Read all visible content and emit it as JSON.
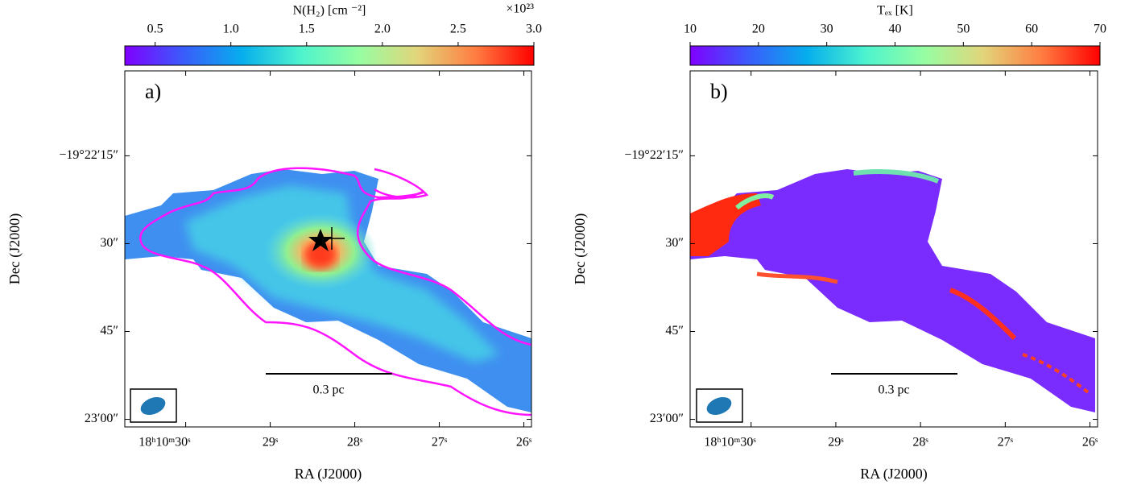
{
  "chart_data": [
    {
      "type": "image",
      "panel_label": "a)",
      "x_label": "RA (J2000)",
      "y_label": "Dec (J2000)",
      "xlim": [
        30.72,
        25.91
      ],
      "xticks": [
        {
          "value": 30,
          "label": "18ʰ10ᵐ30ˢ"
        },
        {
          "value": 29,
          "label": "29ˢ"
        },
        {
          "value": 28,
          "label": "28ˢ"
        },
        {
          "value": 27,
          "label": "27ˢ"
        },
        {
          "value": 26,
          "label": "26ˢ"
        }
      ],
      "ylim": [
        61.3,
        0.5
      ],
      "yticks": [
        {
          "value": 15,
          "label": "−19°22′15″"
        },
        {
          "value": 30,
          "label": "30″"
        },
        {
          "value": 45,
          "label": "45″"
        },
        {
          "value": 60,
          "label": "23′00″"
        }
      ],
      "scale_bar": "0.3 pc",
      "colorbar": {
        "label": "N(H₂) [cm ⁻²]",
        "offset_label": "×10²³",
        "colormap": "rainbow",
        "clim": [
          0.3,
          3.0
        ],
        "ticks": [
          0.5,
          {
            "value": 1,
            "label": "1.0"
          },
          1.5,
          {
            "value": 2,
            "label": "2.0"
          },
          2.5,
          {
            "value": 3,
            "label": "3.0"
          }
        ]
      }
    },
    {
      "type": "image",
      "panel_label": "b)",
      "x_label": "RA (J2000)",
      "y_label": "Dec (J2000)",
      "xlim": [
        30.72,
        25.91
      ],
      "xticks": [
        {
          "value": 30,
          "label": "18ʰ10ᵐ30ˢ"
        },
        {
          "value": 29,
          "label": "29ˢ"
        },
        {
          "value": 28,
          "label": "28ˢ"
        },
        {
          "value": 27,
          "label": "27ˢ"
        },
        {
          "value": 26,
          "label": "26ˢ"
        }
      ],
      "ylim": [
        61.3,
        0.5
      ],
      "yticks": [
        {
          "value": 15,
          "label": "−19°22′15″"
        },
        {
          "value": 30,
          "label": "30″"
        },
        {
          "value": 45,
          "label": "45″"
        },
        {
          "value": 60,
          "label": "23′00″"
        }
      ],
      "scale_bar": "0.3 pc",
      "colorbar": {
        "label": "Tₑₓ [K]",
        "colormap": "rainbow",
        "clim": [
          10,
          70
        ],
        "ticks": [
          10,
          20,
          30,
          40,
          50,
          60,
          70
        ]
      }
    }
  ]
}
